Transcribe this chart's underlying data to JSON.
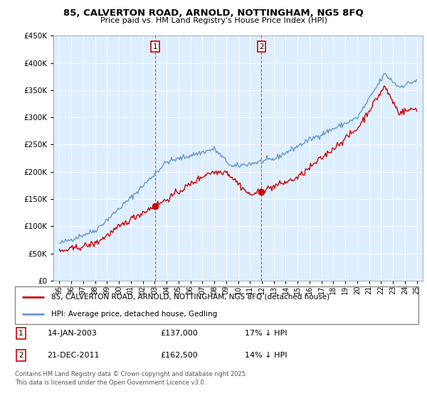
{
  "title": "85, CALVERTON ROAD, ARNOLD, NOTTINGHAM, NG5 8FQ",
  "subtitle": "Price paid vs. HM Land Registry's House Price Index (HPI)",
  "legend_property": "85, CALVERTON ROAD, ARNOLD, NOTTINGHAM, NG5 8FQ (detached house)",
  "legend_hpi": "HPI: Average price, detached house, Gedling",
  "annotation1_date": "14-JAN-2003",
  "annotation1_price": "£137,000",
  "annotation1_hpi": "17% ↓ HPI",
  "annotation2_date": "21-DEC-2011",
  "annotation2_price": "£162,500",
  "annotation2_hpi": "14% ↓ HPI",
  "footer": "Contains HM Land Registry data © Crown copyright and database right 2025.\nThis data is licensed under the Open Government Licence v3.0.",
  "property_color": "#cc0000",
  "hpi_color": "#6699cc",
  "purchase1_x": 2003.04,
  "purchase1_y": 137000,
  "purchase2_x": 2011.97,
  "purchase2_y": 162500,
  "ylim": [
    0,
    450000
  ],
  "yticks": [
    0,
    50000,
    100000,
    150000,
    200000,
    250000,
    300000,
    350000,
    400000,
    450000
  ],
  "xlim": [
    1994.5,
    2025.5
  ],
  "xticks": [
    1995,
    1996,
    1997,
    1998,
    1999,
    2000,
    2001,
    2002,
    2003,
    2004,
    2005,
    2006,
    2007,
    2008,
    2009,
    2010,
    2011,
    2012,
    2013,
    2014,
    2015,
    2016,
    2017,
    2018,
    2019,
    2020,
    2021,
    2022,
    2023,
    2024,
    2025
  ],
  "vline1_x": 2003.04,
  "vline2_x": 2011.97,
  "vline_color": "#cc0000",
  "plot_bg": "#ddeeff",
  "grid_color": "white"
}
